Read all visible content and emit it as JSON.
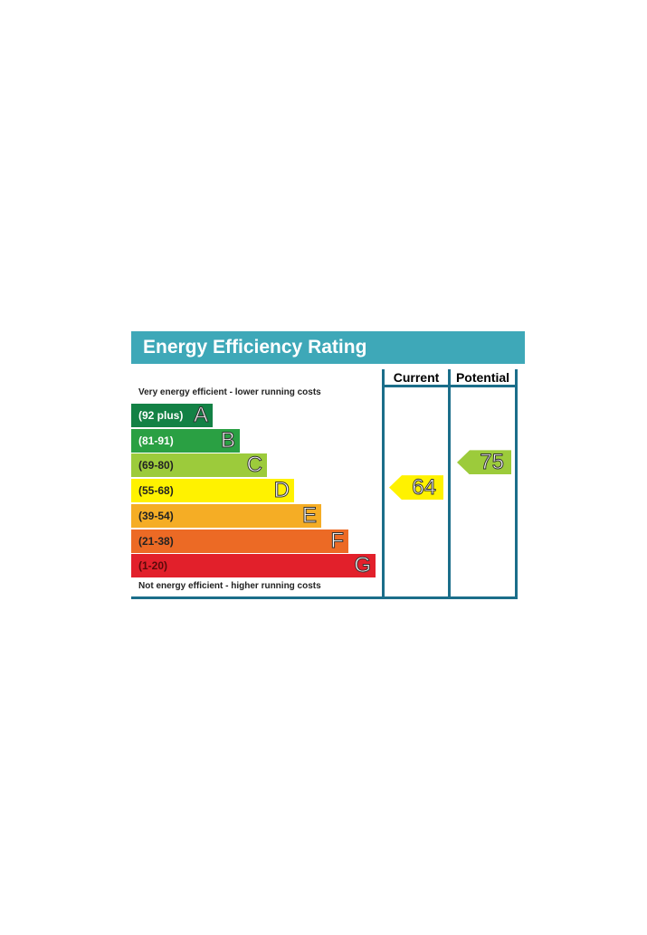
{
  "chart_data": {
    "type": "table",
    "title": "Energy Efficiency Rating",
    "columns": [
      "Current",
      "Potential"
    ],
    "top_note": "Very energy efficient - lower running costs",
    "bottom_note": "Not energy efficient - higher running costs",
    "bands": [
      {
        "letter": "A",
        "range": "(92 plus)",
        "color": "#138145"
      },
      {
        "letter": "B",
        "range": "(81-91)",
        "color": "#2aa043"
      },
      {
        "letter": "C",
        "range": "(69-80)",
        "color": "#9ccb3b"
      },
      {
        "letter": "D",
        "range": "(55-68)",
        "color": "#fff200"
      },
      {
        "letter": "E",
        "range": "(39-54)",
        "color": "#f5ad25"
      },
      {
        "letter": "F",
        "range": "(21-38)",
        "color": "#ec6a25"
      },
      {
        "letter": "G",
        "range": "(1-20)",
        "color": "#e2202b"
      }
    ],
    "current": {
      "value": 64,
      "band": "D",
      "color": "#fff200"
    },
    "potential": {
      "value": 75,
      "band": "C",
      "color": "#9ccb3b"
    }
  }
}
